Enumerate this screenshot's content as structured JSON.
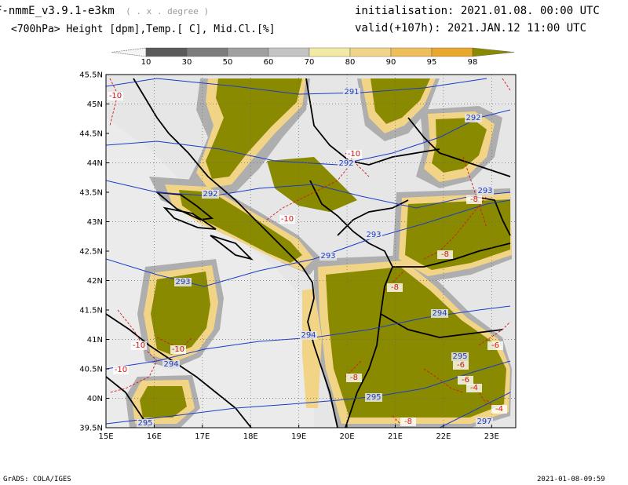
{
  "header": {
    "model": "F-nmmE_v3.9.1-e3km",
    "grid": "( . x . degree )",
    "product": "<700hPa> Height [dpm],Temp.[ C], Mid.Cl.[%]",
    "init": "initialisation: 2021.01.08.  00:00 UTC",
    "valid": "valid(+107h): 2021.JAN.12 11:00 UTC"
  },
  "colorbar": {
    "labels": [
      "10",
      "30",
      "50",
      "60",
      "70",
      "80",
      "90",
      "95",
      "98"
    ],
    "colors": [
      "#f4f4f4",
      "#5a5a5a",
      "#7c7c7c",
      "#a0a0a0",
      "#c4c4c4",
      "#f2eaa4",
      "#f0d48a",
      "#eebe5a",
      "#e8a82c",
      "#8a8a00"
    ]
  },
  "axes": {
    "lat_labels": [
      "45.5N",
      "45N",
      "44.5N",
      "44N",
      "43.5N",
      "43N",
      "42.5N",
      "42N",
      "41.5N",
      "41N",
      "40.5N",
      "40N",
      "39.5N"
    ],
    "lon_labels": [
      "15E",
      "16E",
      "17E",
      "18E",
      "19E",
      "20E",
      "21E",
      "22E",
      "23E"
    ]
  },
  "contours": {
    "height_labels": [
      "291",
      "292",
      "292",
      "292",
      "293",
      "293",
      "293",
      "293",
      "294",
      "294",
      "294",
      "295",
      "295",
      "295",
      "297"
    ],
    "temp_labels": [
      "-10",
      "-10",
      "-10",
      "-10",
      "-10",
      "-10",
      "-8",
      "-8",
      "-8",
      "-8",
      "-6",
      "-6",
      "-6",
      "-4",
      "-4",
      "-8"
    ]
  },
  "footer": {
    "left": "GrADS: COLA/IGES",
    "right": "2021-01-08-09:59"
  },
  "colors": {
    "cloud_98": "#8a8a00",
    "cloud_80": "#f2d486",
    "cloud_gray": "#a8a8a8",
    "background": "#e6e6e6",
    "height_line": "#1a3cc8",
    "temp_line": "#d01818"
  }
}
